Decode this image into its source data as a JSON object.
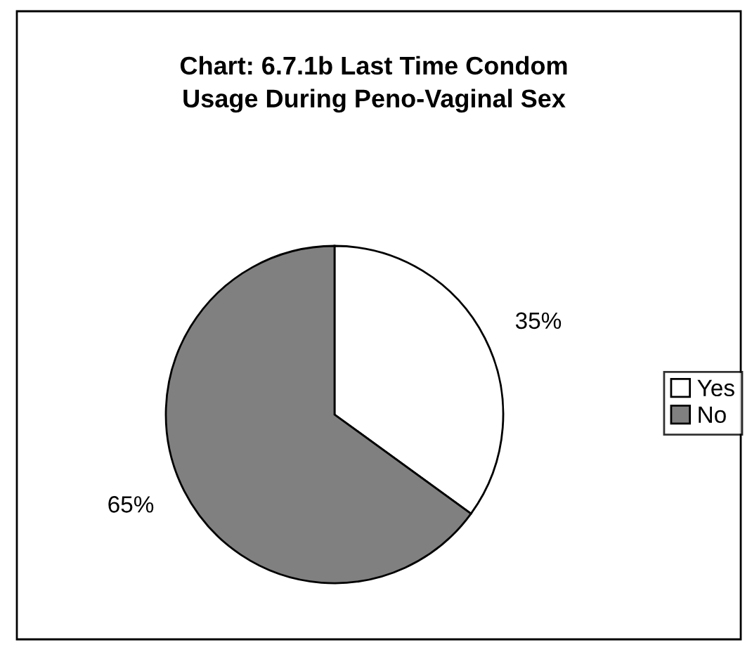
{
  "chart_data": {
    "type": "pie",
    "title": "Chart: 6.7.1b Last Time Condom\nUsage During Peno-Vaginal Sex",
    "categories": [
      "Yes",
      "No"
    ],
    "values": [
      35,
      65
    ],
    "colors": [
      "#ffffff",
      "#808080"
    ],
    "value_labels": [
      "35%",
      "65%"
    ],
    "legend": "right"
  }
}
